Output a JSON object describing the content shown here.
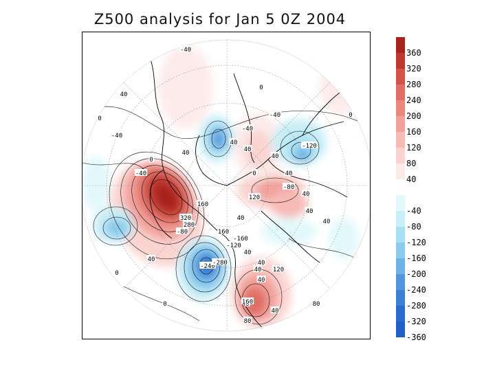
{
  "title": "Z500 analysis for Jan 5 0Z 2004",
  "colorbar": {
    "entries": [
      {
        "label": "360",
        "color": "#a8231b"
      },
      {
        "label": "320",
        "color": "#c0392f"
      },
      {
        "label": "280",
        "color": "#d35349"
      },
      {
        "label": "240",
        "color": "#e06e66"
      },
      {
        "label": "200",
        "color": "#ea8880"
      },
      {
        "label": "160",
        "color": "#f2a19b"
      },
      {
        "label": "120",
        "color": "#f7bab6"
      },
      {
        "label": "80",
        "color": "#fbd4d1"
      },
      {
        "label": "40",
        "color": "#fdebea"
      },
      {
        "label": "",
        "color": "#ffffff"
      },
      {
        "label": "-40",
        "color": "#e2f8fb"
      },
      {
        "label": "-80",
        "color": "#c8eef7"
      },
      {
        "label": "-120",
        "color": "#a9e0f3"
      },
      {
        "label": "-160",
        "color": "#8ccbee"
      },
      {
        "label": "-200",
        "color": "#6cb2e6"
      },
      {
        "label": "-240",
        "color": "#5097df"
      },
      {
        "label": "-280",
        "color": "#3a80d6"
      },
      {
        "label": "-320",
        "color": "#2a6cce"
      },
      {
        "label": "-360",
        "color": "#2060c8"
      }
    ]
  },
  "contour_labels": [
    "-40",
    "40",
    "0",
    "-40",
    "0",
    "-40",
    "-40",
    "40",
    "0",
    "40",
    "0",
    "-40",
    "40",
    "40",
    "-120",
    "40",
    "-80",
    "40",
    "0",
    "40",
    "160",
    "120",
    "40",
    "40",
    "320",
    "280",
    "-80",
    "160",
    "-160",
    "-120",
    "40",
    "40",
    "-240",
    "-280",
    "40",
    "120",
    "0",
    "40",
    "0",
    "0",
    "80",
    "40",
    "160",
    "40",
    "80"
  ]
}
